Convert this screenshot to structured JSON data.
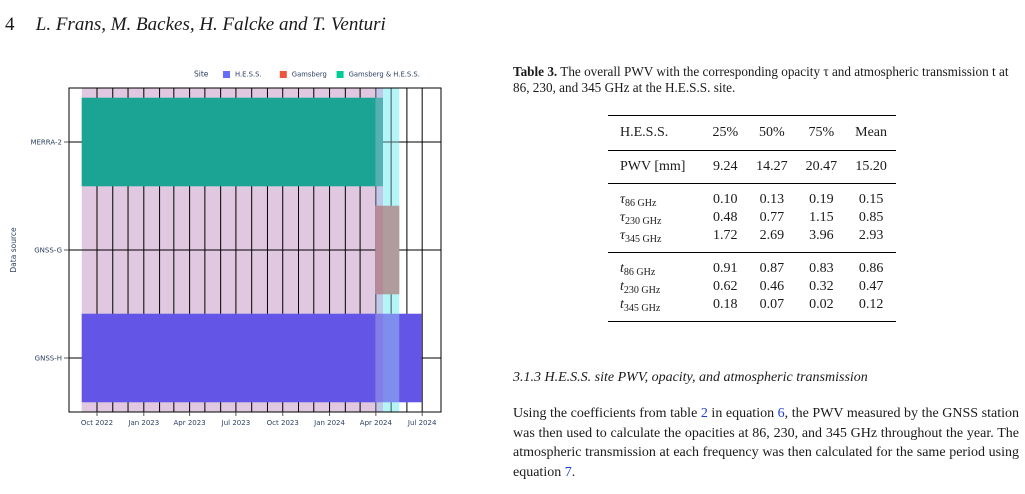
{
  "header": {
    "page_number": "4",
    "authors": "L. Frans, M. Backes, H. Falcke and T. Venturi"
  },
  "chart_data": {
    "type": "timeline",
    "ylabel": "Data source",
    "legend": {
      "title": "Site",
      "placement": "top",
      "items": [
        {
          "label": "H.E.S.S.",
          "color": "#636efa"
        },
        {
          "label": "Gamsberg",
          "color": "#ef553b"
        },
        {
          "label": "Gamsberg & H.E.S.S.",
          "color": "#00cc96"
        }
      ]
    },
    "categories": [
      "MERRA-2",
      "GNSS-G",
      "GNSS-H"
    ],
    "x_ticks": [
      "Oct 2022",
      "Jan 2023",
      "Apr 2023",
      "Jul 2023",
      "Oct 2023",
      "Jan 2024",
      "Apr 2024",
      "Jul 2024"
    ],
    "x_range": [
      "2022-08-07",
      "2024-08-07"
    ],
    "bars": [
      {
        "source": "MERRA-2",
        "site": "Gamsberg & H.E.S.S.",
        "start": "2022-09-01",
        "end": "2024-04-15",
        "color": "#1ba394"
      },
      {
        "source": "GNSS-G",
        "site": "Gamsberg",
        "start": "2024-03-31",
        "end": "2024-05-17",
        "color": "#ae6b6c"
      },
      {
        "source": "GNSS-H",
        "site": "H.E.S.S.",
        "start": "2022-09-01",
        "end": "2024-06-30",
        "color": "#6355e6"
      }
    ],
    "shaded_regions": [
      {
        "start": "2022-09-01",
        "end": "2024-04-15",
        "color": "#e0c8e0"
      },
      {
        "start": "2024-03-31",
        "end": "2024-04-15",
        "color": "#c0c8e8"
      },
      {
        "start": "2024-04-15",
        "end": "2024-05-17",
        "color": "#b5f5f8"
      }
    ],
    "vertical_lines": [
      "2022-10-01",
      "2022-11-01",
      "2022-12-01",
      "2023-01-01",
      "2023-02-01",
      "2023-03-01",
      "2023-04-01",
      "2023-05-01",
      "2023-06-01",
      "2023-07-01",
      "2023-08-01",
      "2023-09-01",
      "2023-10-01",
      "2023-11-01",
      "2023-12-01",
      "2024-01-01",
      "2024-02-01",
      "2024-03-01",
      "2024-04-01",
      "2024-05-01",
      "2024-06-01",
      "2024-07-01"
    ]
  },
  "table": {
    "caption_label": "Table 3.",
    "caption_text": "The overall PWV with the corresponding opacity τ and atmospheric transmission t at 86, 230, and 345 GHz at the H.E.S.S. site.",
    "columns": [
      "H.E.S.S.",
      "25%",
      "50%",
      "75%",
      "Mean"
    ],
    "pwv_row": {
      "label": "PWV [mm]",
      "values": [
        "9.24",
        "14.27",
        "20.47",
        "15.20"
      ]
    },
    "tau_rows": [
      {
        "sym": "τ",
        "sub": "86 GHz",
        "values": [
          "0.10",
          "0.13",
          "0.19",
          "0.15"
        ]
      },
      {
        "sym": "τ",
        "sub": "230 GHz",
        "values": [
          "0.48",
          "0.77",
          "1.15",
          "0.85"
        ]
      },
      {
        "sym": "τ",
        "sub": "345 GHz",
        "values": [
          "1.72",
          "2.69",
          "3.96",
          "2.93"
        ]
      }
    ],
    "t_rows": [
      {
        "sym": "t",
        "sub": "86 GHz",
        "values": [
          "0.91",
          "0.87",
          "0.83",
          "0.86"
        ]
      },
      {
        "sym": "t",
        "sub": "230 GHz",
        "values": [
          "0.62",
          "0.46",
          "0.32",
          "0.47"
        ]
      },
      {
        "sym": "t",
        "sub": "345 GHz",
        "values": [
          "0.18",
          "0.07",
          "0.02",
          "0.12"
        ]
      }
    ]
  },
  "section": {
    "title": "3.1.3 H.E.S.S. site PWV, opacity, and atmospheric transmission"
  },
  "paragraph": {
    "part1": "Using the coefficients from table ",
    "ref1": "2",
    "part2": " in equation ",
    "ref2": "6",
    "part3": ", the PWV measured by the GNSS station was then used to calculate the opacities at 86, 230, and 345 GHz throughout the year. The atmospheric transmission at each frequency was then calculated for the same period using equation ",
    "ref3": "7",
    "part4": "."
  }
}
